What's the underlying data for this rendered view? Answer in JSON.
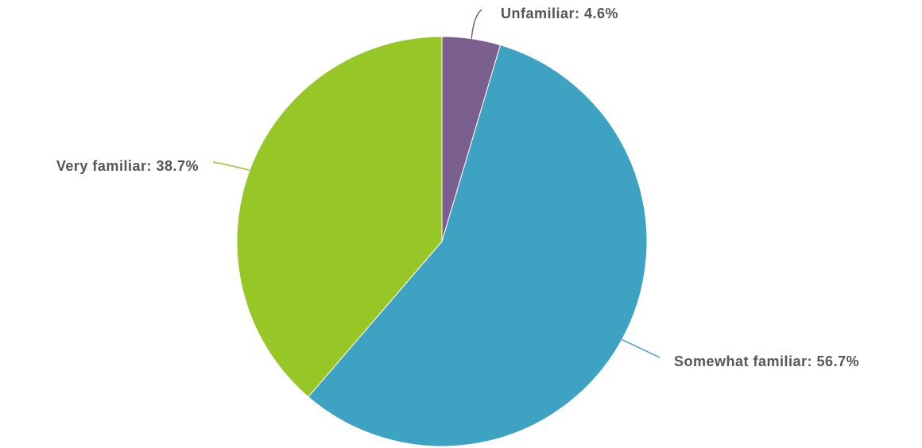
{
  "chart_data": {
    "type": "pie",
    "categories": [
      "Unfamiliar: 4.6%",
      "Somewhat familiar: 56.7%",
      "Very familiar: 38.7%"
    ],
    "values": [
      4.6,
      56.7,
      38.7
    ],
    "colors": [
      "#7b5f8e",
      "#3ea2c2",
      "#97c726"
    ]
  }
}
